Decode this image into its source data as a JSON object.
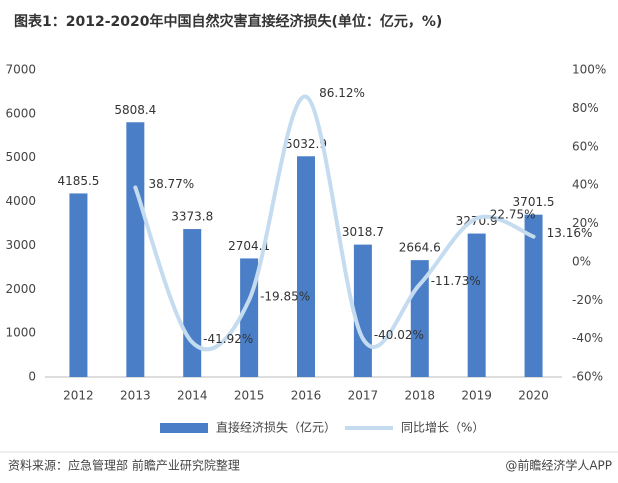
{
  "chart_data": {
    "type": "bar-line",
    "title": "图表1：2012-2020年中国自然灾害直接经济损失(单位：亿元，%)",
    "categories": [
      "2012",
      "2013",
      "2014",
      "2015",
      "2016",
      "2017",
      "2018",
      "2019",
      "2020"
    ],
    "series": [
      {
        "name": "直接经济损失（亿元）",
        "type": "bar",
        "color": "#4a7fc8",
        "values": [
          4185.5,
          5808.4,
          3373.8,
          2704.1,
          5032.9,
          3018.7,
          2664.6,
          3270.9,
          3701.5
        ]
      },
      {
        "name": "同比增长（%）",
        "type": "line",
        "axis": "y2",
        "color": "#c5dcf0",
        "values": [
          null,
          38.77,
          -41.92,
          -19.85,
          86.12,
          -40.02,
          -11.73,
          22.75,
          13.16
        ],
        "value_labels": [
          null,
          "38.77%",
          "-41.92%",
          "-19.85%",
          "86.12%",
          "-40.02%",
          "-11.73%",
          "22.75%",
          "13.16%"
        ]
      }
    ],
    "ylim": [
      0,
      7000
    ],
    "yticks": [
      0,
      1000,
      2000,
      3000,
      4000,
      5000,
      6000,
      7000
    ],
    "y2lim": [
      -60,
      100
    ],
    "y2ticks": [
      {
        "value": -60,
        "label": "-60%"
      },
      {
        "value": -40,
        "label": "-40%"
      },
      {
        "value": -20,
        "label": "-20%"
      },
      {
        "value": 0,
        "label": "0%"
      },
      {
        "value": 20,
        "label": "20%"
      },
      {
        "value": 40,
        "label": "40%"
      },
      {
        "value": 60,
        "label": "60%"
      },
      {
        "value": 80,
        "label": "80%"
      },
      {
        "value": 100,
        "label": "100%"
      }
    ],
    "legend": "bottom",
    "source": "资料来源：应急管理部 前瞻产业研究院整理",
    "credit": "@前瞻经济学人APP"
  }
}
